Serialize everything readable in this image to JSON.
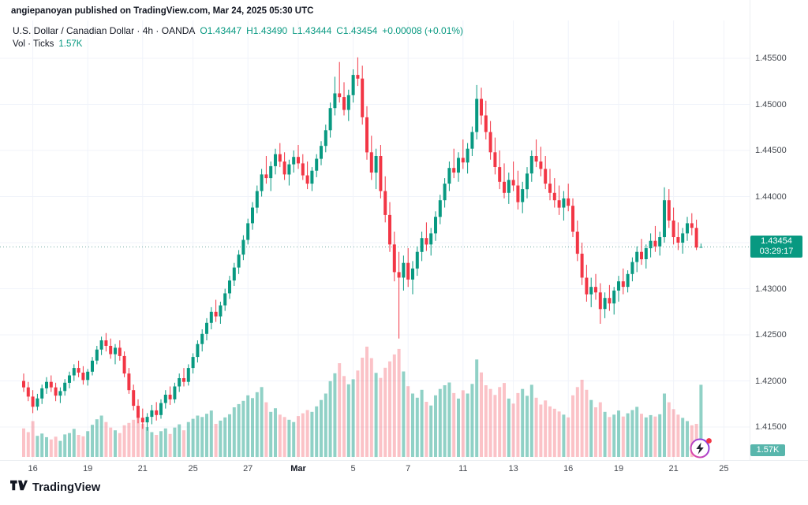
{
  "attribution": "angiepanoyan published on TradingView.com, Mar 24, 2025 05:30 UTC",
  "legend": {
    "symbol_line": "U.S. Dollar / Canadian Dollar · 4h · OANDA",
    "open": "O1.43447",
    "high": "H1.43490",
    "low": "L1.43444",
    "close": "C1.43454",
    "change": "+0.00008 (+0.01%)",
    "volume_label": "Vol · Ticks",
    "volume_value": "1.57K"
  },
  "price_axis": {
    "badge_price": "1.43454",
    "badge_countdown": "03:29:17",
    "volume_badge": "1.57K"
  },
  "footer": {
    "brand": "TradingView"
  },
  "colors": {
    "up": "#089981",
    "down": "#f23645",
    "vol_up": "rgba(8,153,129,0.45)",
    "vol_down": "rgba(242,54,69,0.30)",
    "grid": "#f0f3fa",
    "price_line": "#6fa8a1",
    "badge_bg": "#089981",
    "vol_badge_bg": "#58b6ac",
    "green_text": "#089981",
    "text_primary": "#131722"
  },
  "chart_data": {
    "type": "candlestick",
    "title": "U.S. Dollar / Canadian Dollar",
    "interval": "4h",
    "exchange": "OANDA",
    "volume_unit": "Ticks",
    "ylim": [
      1.415,
      1.455
    ],
    "grid": true,
    "y_ticks": [
      "1.45500",
      "1.45000",
      "1.44500",
      "1.44000",
      "1.43500",
      "1.43000",
      "1.42500",
      "1.42000",
      "1.41500"
    ],
    "x_ticks": [
      {
        "label": "16",
        "i": 2
      },
      {
        "label": "19",
        "i": 14
      },
      {
        "label": "21",
        "i": 26
      },
      {
        "label": "25",
        "i": 37
      },
      {
        "label": "27",
        "i": 49
      },
      {
        "label": "Mar",
        "i": 60,
        "bold": true
      },
      {
        "label": "5",
        "i": 72
      },
      {
        "label": "7",
        "i": 84
      },
      {
        "label": "11",
        "i": 96
      },
      {
        "label": "13",
        "i": 107
      },
      {
        "label": "16",
        "i": 119
      },
      {
        "label": "19",
        "i": 130
      },
      {
        "label": "21",
        "i": 142
      },
      {
        "label": "25",
        "i": 153
      }
    ],
    "last": {
      "open": 1.43447,
      "high": 1.4349,
      "low": 1.43444,
      "close": 1.43454,
      "change": 8e-05,
      "change_pct": 0.01,
      "volume": 1570,
      "countdown": "03:29:17"
    },
    "candles": [
      [
        1.42,
        1.4208,
        1.4188,
        1.4193,
        620
      ],
      [
        1.4193,
        1.4199,
        1.4178,
        1.4183,
        540
      ],
      [
        1.4183,
        1.419,
        1.4165,
        1.4172,
        780
      ],
      [
        1.4172,
        1.4186,
        1.4168,
        1.4181,
        460
      ],
      [
        1.4181,
        1.4196,
        1.4175,
        1.4192,
        510
      ],
      [
        1.4192,
        1.4204,
        1.4186,
        1.4199,
        430
      ],
      [
        1.4199,
        1.4206,
        1.4188,
        1.4193,
        380
      ],
      [
        1.4193,
        1.4198,
        1.4178,
        1.4184,
        440
      ],
      [
        1.4184,
        1.4193,
        1.4176,
        1.4189,
        350
      ],
      [
        1.4189,
        1.4202,
        1.4184,
        1.4198,
        490
      ],
      [
        1.4198,
        1.421,
        1.4192,
        1.4206,
        520
      ],
      [
        1.4206,
        1.4218,
        1.42,
        1.4214,
        610
      ],
      [
        1.4214,
        1.4222,
        1.4204,
        1.4209,
        480
      ],
      [
        1.4209,
        1.4216,
        1.4196,
        1.4201,
        450
      ],
      [
        1.4201,
        1.4213,
        1.4195,
        1.421,
        560
      ],
      [
        1.421,
        1.4226,
        1.4206,
        1.4222,
        700
      ],
      [
        1.4222,
        1.4238,
        1.4218,
        1.4234,
        820
      ],
      [
        1.4234,
        1.4248,
        1.4228,
        1.4244,
        900
      ],
      [
        1.4244,
        1.4252,
        1.4232,
        1.4238,
        760
      ],
      [
        1.4238,
        1.4246,
        1.4224,
        1.4229,
        640
      ],
      [
        1.4229,
        1.424,
        1.4218,
        1.4236,
        580
      ],
      [
        1.4236,
        1.4244,
        1.4222,
        1.4227,
        520
      ],
      [
        1.4227,
        1.4232,
        1.4204,
        1.4208,
        690
      ],
      [
        1.4208,
        1.4214,
        1.4186,
        1.419,
        740
      ],
      [
        1.419,
        1.4196,
        1.4168,
        1.4173,
        810
      ],
      [
        1.4173,
        1.418,
        1.4154,
        1.416,
        880
      ],
      [
        1.416,
        1.417,
        1.4148,
        1.4155,
        720
      ],
      [
        1.4155,
        1.4165,
        1.4146,
        1.4161,
        650
      ],
      [
        1.4161,
        1.4174,
        1.4153,
        1.4168,
        540
      ],
      [
        1.4168,
        1.4177,
        1.4157,
        1.4163,
        480
      ],
      [
        1.4163,
        1.418,
        1.4159,
        1.4176,
        560
      ],
      [
        1.4176,
        1.419,
        1.417,
        1.4185,
        620
      ],
      [
        1.4185,
        1.4194,
        1.4174,
        1.418,
        500
      ],
      [
        1.418,
        1.4198,
        1.4176,
        1.4194,
        640
      ],
      [
        1.4194,
        1.4208,
        1.4188,
        1.4203,
        710
      ],
      [
        1.4203,
        1.4214,
        1.4194,
        1.4199,
        580
      ],
      [
        1.4199,
        1.4218,
        1.4195,
        1.4214,
        760
      ],
      [
        1.4214,
        1.423,
        1.4208,
        1.4226,
        830
      ],
      [
        1.4226,
        1.4244,
        1.422,
        1.424,
        900
      ],
      [
        1.424,
        1.4256,
        1.4232,
        1.4251,
        870
      ],
      [
        1.4251,
        1.4268,
        1.4244,
        1.4263,
        940
      ],
      [
        1.4263,
        1.428,
        1.4256,
        1.4275,
        1010
      ],
      [
        1.4275,
        1.4288,
        1.4264,
        1.427,
        720
      ],
      [
        1.427,
        1.4286,
        1.4262,
        1.4282,
        790
      ],
      [
        1.4282,
        1.43,
        1.4276,
        1.4295,
        860
      ],
      [
        1.4295,
        1.4314,
        1.4289,
        1.4309,
        930
      ],
      [
        1.4309,
        1.4328,
        1.4303,
        1.4323,
        1080
      ],
      [
        1.4323,
        1.4342,
        1.4316,
        1.4337,
        1150
      ],
      [
        1.4337,
        1.4358,
        1.4331,
        1.4353,
        1220
      ],
      [
        1.4353,
        1.4376,
        1.4348,
        1.4371,
        1340
      ],
      [
        1.4371,
        1.4394,
        1.4364,
        1.4388,
        1280
      ],
      [
        1.4388,
        1.4412,
        1.4382,
        1.4406,
        1410
      ],
      [
        1.4406,
        1.443,
        1.44,
        1.4424,
        1520
      ],
      [
        1.4424,
        1.4444,
        1.4414,
        1.442,
        1190
      ],
      [
        1.442,
        1.4438,
        1.4406,
        1.4433,
        980
      ],
      [
        1.4433,
        1.4452,
        1.4424,
        1.4446,
        1060
      ],
      [
        1.4446,
        1.4458,
        1.4432,
        1.4438,
        920
      ],
      [
        1.4438,
        1.4448,
        1.4418,
        1.4424,
        870
      ],
      [
        1.4424,
        1.444,
        1.4412,
        1.4435,
        810
      ],
      [
        1.4435,
        1.445,
        1.4426,
        1.4443,
        760
      ],
      [
        1.4443,
        1.4456,
        1.443,
        1.4436,
        890
      ],
      [
        1.4436,
        1.4446,
        1.4418,
        1.4423,
        950
      ],
      [
        1.4423,
        1.4438,
        1.4408,
        1.4414,
        1020
      ],
      [
        1.4414,
        1.4432,
        1.4406,
        1.4428,
        980
      ],
      [
        1.4428,
        1.4446,
        1.4421,
        1.4441,
        1100
      ],
      [
        1.4441,
        1.446,
        1.4434,
        1.4455,
        1240
      ],
      [
        1.4455,
        1.4478,
        1.4448,
        1.4472,
        1380
      ],
      [
        1.4472,
        1.4502,
        1.4464,
        1.4496,
        1650
      ],
      [
        1.4496,
        1.453,
        1.4488,
        1.4512,
        1820
      ],
      [
        1.4512,
        1.4546,
        1.4502,
        1.4508,
        2040
      ],
      [
        1.4508,
        1.4524,
        1.4488,
        1.4494,
        1760
      ],
      [
        1.4494,
        1.4516,
        1.4482,
        1.451,
        1580
      ],
      [
        1.451,
        1.4538,
        1.4502,
        1.4532,
        1690
      ],
      [
        1.4532,
        1.4551,
        1.452,
        1.4528,
        1880
      ],
      [
        1.4528,
        1.4542,
        1.4478,
        1.4486,
        2160
      ],
      [
        1.4486,
        1.4498,
        1.444,
        1.4448,
        2400
      ],
      [
        1.4448,
        1.4466,
        1.4418,
        1.4426,
        2150
      ],
      [
        1.4426,
        1.4452,
        1.4408,
        1.4444,
        1830
      ],
      [
        1.4444,
        1.4456,
        1.4398,
        1.4406,
        1720
      ],
      [
        1.4406,
        1.4422,
        1.4372,
        1.438,
        1940
      ],
      [
        1.438,
        1.4394,
        1.434,
        1.4348,
        2080
      ],
      [
        1.4348,
        1.4362,
        1.4308,
        1.4318,
        2230
      ],
      [
        1.4318,
        1.434,
        1.4246,
        1.4312,
        2350
      ],
      [
        1.4312,
        1.4336,
        1.4298,
        1.4328,
        1860
      ],
      [
        1.4328,
        1.4344,
        1.4302,
        1.431,
        1540
      ],
      [
        1.431,
        1.433,
        1.4294,
        1.4322,
        1380
      ],
      [
        1.4322,
        1.4346,
        1.4314,
        1.434,
        1290
      ],
      [
        1.434,
        1.4362,
        1.433,
        1.4355,
        1460
      ],
      [
        1.4355,
        1.4372,
        1.4341,
        1.4348,
        1200
      ],
      [
        1.4348,
        1.4366,
        1.4336,
        1.436,
        1120
      ],
      [
        1.436,
        1.4384,
        1.4352,
        1.4378,
        1340
      ],
      [
        1.4378,
        1.4402,
        1.437,
        1.4396,
        1480
      ],
      [
        1.4396,
        1.442,
        1.4388,
        1.4414,
        1560
      ],
      [
        1.4414,
        1.4438,
        1.4406,
        1.4431,
        1620
      ],
      [
        1.4431,
        1.4452,
        1.442,
        1.4426,
        1390
      ],
      [
        1.4426,
        1.4448,
        1.4416,
        1.4442,
        1270
      ],
      [
        1.4442,
        1.4462,
        1.443,
        1.4437,
        1450
      ],
      [
        1.4437,
        1.4458,
        1.4425,
        1.4452,
        1380
      ],
      [
        1.4452,
        1.4476,
        1.4444,
        1.447,
        1590
      ],
      [
        1.447,
        1.4521,
        1.4462,
        1.4506,
        2120
      ],
      [
        1.4506,
        1.4518,
        1.4478,
        1.4488,
        1840
      ],
      [
        1.4488,
        1.4504,
        1.4462,
        1.447,
        1560
      ],
      [
        1.447,
        1.4482,
        1.444,
        1.4448,
        1480
      ],
      [
        1.4448,
        1.4464,
        1.4424,
        1.4432,
        1350
      ],
      [
        1.4432,
        1.445,
        1.4408,
        1.4416,
        1520
      ],
      [
        1.4416,
        1.4436,
        1.4398,
        1.4404,
        1610
      ],
      [
        1.4404,
        1.4426,
        1.4392,
        1.4418,
        1270
      ],
      [
        1.4418,
        1.4438,
        1.4406,
        1.4412,
        1160
      ],
      [
        1.4412,
        1.4428,
        1.4386,
        1.4394,
        1390
      ],
      [
        1.4394,
        1.4416,
        1.4382,
        1.4408,
        1480
      ],
      [
        1.4408,
        1.4432,
        1.4398,
        1.4425,
        1330
      ],
      [
        1.4425,
        1.445,
        1.4416,
        1.4444,
        1570
      ],
      [
        1.4444,
        1.4462,
        1.4432,
        1.4438,
        1290
      ],
      [
        1.4438,
        1.4454,
        1.4422,
        1.443,
        1140
      ],
      [
        1.443,
        1.4444,
        1.4408,
        1.4414,
        1230
      ],
      [
        1.4414,
        1.443,
        1.4396,
        1.4404,
        1100
      ],
      [
        1.4404,
        1.442,
        1.4388,
        1.4396,
        1050
      ],
      [
        1.4396,
        1.4412,
        1.438,
        1.4388,
        990
      ],
      [
        1.4388,
        1.4406,
        1.4374,
        1.4398,
        920
      ],
      [
        1.4398,
        1.4414,
        1.4384,
        1.439,
        860
      ],
      [
        1.439,
        1.4398,
        1.4356,
        1.4362,
        1340
      ],
      [
        1.4362,
        1.4374,
        1.433,
        1.4338,
        1520
      ],
      [
        1.4338,
        1.435,
        1.4304,
        1.4312,
        1680
      ],
      [
        1.4312,
        1.4326,
        1.4286,
        1.4294,
        1460
      ],
      [
        1.4294,
        1.4312,
        1.428,
        1.4302,
        1240
      ],
      [
        1.4302,
        1.4316,
        1.4288,
        1.4296,
        1080
      ],
      [
        1.4296,
        1.4306,
        1.4262,
        1.4278,
        1190
      ],
      [
        1.4278,
        1.4296,
        1.4268,
        1.429,
        980
      ],
      [
        1.429,
        1.4304,
        1.4276,
        1.4284,
        870
      ],
      [
        1.4284,
        1.4302,
        1.4272,
        1.4298,
        920
      ],
      [
        1.4298,
        1.4314,
        1.4286,
        1.4308,
        1010
      ],
      [
        1.4308,
        1.4322,
        1.4294,
        1.4302,
        880
      ],
      [
        1.4302,
        1.432,
        1.4296,
        1.4316,
        950
      ],
      [
        1.4316,
        1.4334,
        1.4308,
        1.4329,
        1020
      ],
      [
        1.4329,
        1.4346,
        1.4318,
        1.434,
        1090
      ],
      [
        1.434,
        1.4354,
        1.4326,
        1.4332,
        940
      ],
      [
        1.4332,
        1.4348,
        1.4322,
        1.4344,
        860
      ],
      [
        1.4344,
        1.436,
        1.4334,
        1.4352,
        910
      ],
      [
        1.4352,
        1.4368,
        1.434,
        1.4346,
        880
      ],
      [
        1.4346,
        1.4362,
        1.4336,
        1.4356,
        930
      ],
      [
        1.4356,
        1.441,
        1.435,
        1.4396,
        1380
      ],
      [
        1.4396,
        1.4408,
        1.4366,
        1.4374,
        1190
      ],
      [
        1.4374,
        1.4388,
        1.4348,
        1.4356,
        1040
      ],
      [
        1.4356,
        1.4372,
        1.4342,
        1.435,
        920
      ],
      [
        1.435,
        1.4366,
        1.4338,
        1.436,
        850
      ],
      [
        1.436,
        1.4378,
        1.4352,
        1.4371,
        780
      ],
      [
        1.4371,
        1.4382,
        1.4358,
        1.4366,
        690
      ],
      [
        1.4366,
        1.4375,
        1.4342,
        1.43447,
        720
      ],
      [
        1.43447,
        1.4349,
        1.43444,
        1.43454,
        1570
      ]
    ]
  }
}
